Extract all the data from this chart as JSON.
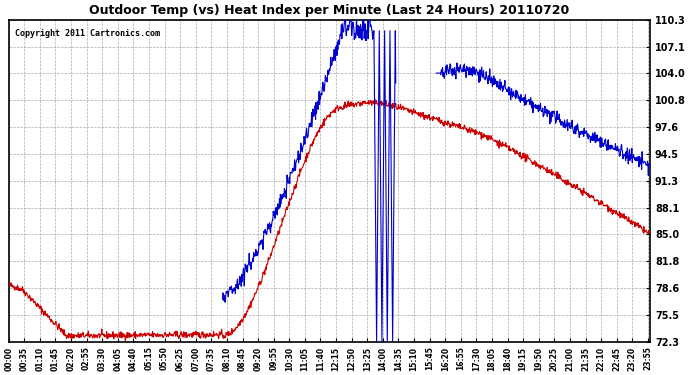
{
  "title": "Outdoor Temp (vs) Heat Index per Minute (Last 24 Hours) 20110720",
  "copyright": "Copyright 2011 Cartronics.com",
  "background_color": "#ffffff",
  "plot_bg_color": "#ffffff",
  "grid_color": "#aaaaaa",
  "red_color": "#cc0000",
  "blue_color": "#0000cc",
  "yticks": [
    72.3,
    75.5,
    78.6,
    81.8,
    85.0,
    88.1,
    91.3,
    94.5,
    97.6,
    100.8,
    104.0,
    107.1,
    110.3
  ],
  "ymin": 72.3,
  "ymax": 110.3,
  "xtick_labels": [
    "00:00",
    "00:35",
    "01:10",
    "01:45",
    "02:20",
    "02:55",
    "03:30",
    "04:05",
    "04:40",
    "05:15",
    "05:50",
    "06:25",
    "07:00",
    "07:35",
    "08:10",
    "08:45",
    "09:20",
    "09:55",
    "10:30",
    "11:05",
    "11:40",
    "12:15",
    "12:50",
    "13:25",
    "14:00",
    "14:35",
    "15:10",
    "15:45",
    "16:20",
    "16:55",
    "17:30",
    "18:05",
    "18:40",
    "19:15",
    "19:50",
    "20:25",
    "21:00",
    "21:35",
    "22:10",
    "22:45",
    "23:20",
    "23:55"
  ]
}
